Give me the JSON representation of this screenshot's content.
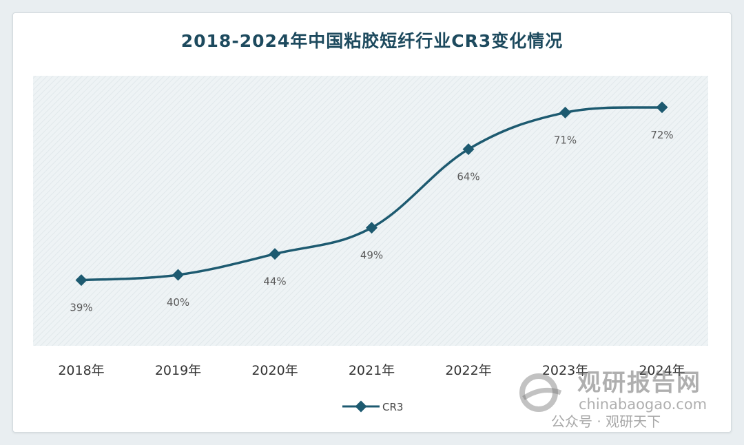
{
  "chart_data": {
    "type": "line",
    "title": "2018-2024年中国粘胶短纤行业CR3变化情况",
    "categories": [
      "2018年",
      "2019年",
      "2020年",
      "2021年",
      "2022年",
      "2023年",
      "2024年"
    ],
    "series": [
      {
        "name": "CR3",
        "values": [
          39,
          40,
          44,
          49,
          64,
          71,
          72
        ],
        "labels": [
          "39%",
          "40%",
          "44%",
          "49%",
          "64%",
          "71%",
          "72%"
        ]
      }
    ],
    "xlabel": "",
    "ylabel": "",
    "ylim": [
      0,
      100
    ],
    "grid": false,
    "legend": "bottom-center",
    "colors": {
      "line": "#1d5a70",
      "plot_bg": "#eef3f5",
      "title": "#1d4a5e"
    }
  },
  "watermark": {
    "brand_cn": "观研报告网",
    "brand_en": "chinabaogao.com",
    "account": "公众号 · 观研天下"
  }
}
